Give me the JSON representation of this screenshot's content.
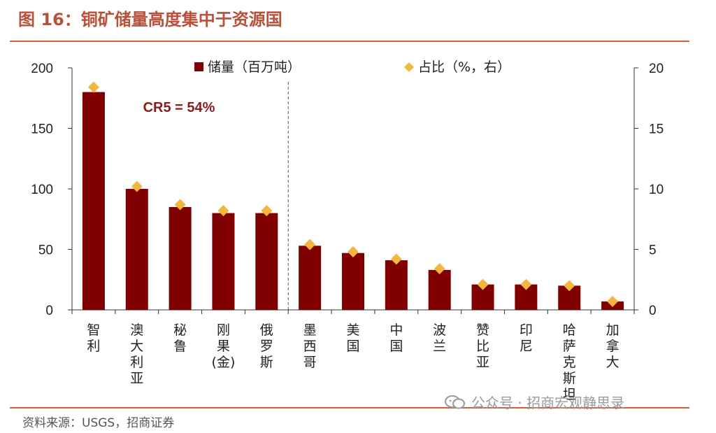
{
  "figure": {
    "title": "图 16：铜矿储量高度集中于资源国",
    "source": "资料来源：USGS，招商证券",
    "watermark": "公众号 · 招商宏观静思录"
  },
  "colors": {
    "bar": "#800000",
    "marker": "#F5B63F",
    "title": "#B8503A",
    "rule": "#C9643F",
    "annotation": "#8B1A1A",
    "axis": "#333333"
  },
  "chart_data": {
    "type": "bar",
    "categories": [
      "智利",
      "澳大利亚",
      "秘鲁",
      "刚果(金)",
      "俄罗斯",
      "墨西哥",
      "美国",
      "中国",
      "波兰",
      "赞比亚",
      "印尼",
      "哈萨克斯坦",
      "加拿大"
    ],
    "series": [
      {
        "name": "储量（百万吨）",
        "type": "bar",
        "axis": "left",
        "values": [
          180,
          100,
          85,
          80,
          80,
          53,
          47,
          41,
          33,
          21,
          21,
          20,
          7
        ]
      },
      {
        "name": "占比（%，右）",
        "type": "scatter",
        "marker": "diamond",
        "axis": "right",
        "values": [
          18.4,
          10.2,
          8.7,
          8.2,
          8.2,
          5.4,
          4.8,
          4.2,
          3.4,
          2.1,
          2.1,
          2.0,
          0.7
        ]
      }
    ],
    "y_left": {
      "min": 0,
      "max": 200,
      "ticks": [
        0,
        50,
        100,
        150,
        200
      ]
    },
    "y_right": {
      "min": 0,
      "max": 20,
      "ticks": [
        0,
        5,
        10,
        15,
        20
      ]
    },
    "annotation": "CR5 = 54%",
    "divider_after_index": 4,
    "legend_position": "top"
  }
}
